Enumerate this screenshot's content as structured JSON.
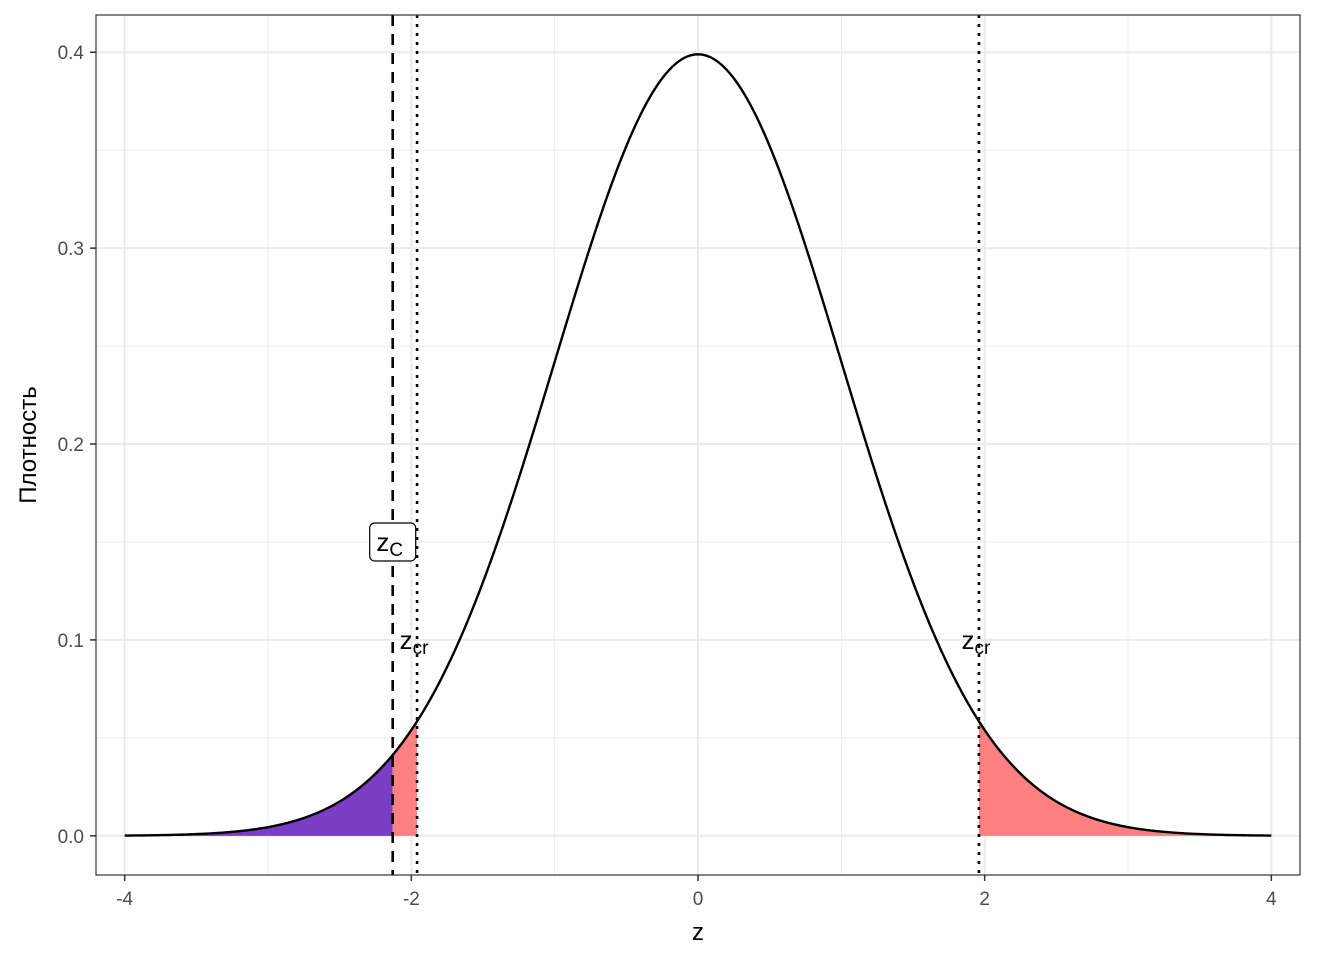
{
  "chart_data": {
    "type": "area",
    "distribution": "standard-normal",
    "xlabel": "z",
    "ylabel": "Плотность",
    "xlim": [
      -4.2,
      4.2
    ],
    "ylim": [
      -0.02,
      0.419
    ],
    "x_ticks": [
      -4,
      -2,
      0,
      2,
      4
    ],
    "x_tick_labels": [
      "-4",
      "-2",
      "0",
      "2",
      "4"
    ],
    "y_ticks": [
      0.0,
      0.1,
      0.2,
      0.3,
      0.4
    ],
    "y_tick_labels": [
      "0.0",
      "0.1",
      "0.2",
      "0.3",
      "0.4"
    ],
    "grid": true,
    "curve": {
      "x_from": -4,
      "x_to": 4,
      "color": "#000000"
    },
    "shaded_regions": [
      {
        "x_from": -4,
        "x_to": -2.13,
        "color": "#7B3DC3"
      },
      {
        "x_from": -2.13,
        "x_to": -1.96,
        "color": "#FF8080"
      },
      {
        "x_from": 1.96,
        "x_to": 4,
        "color": "#FF8080"
      }
    ],
    "vlines": [
      {
        "x": -2.13,
        "style": "dashed"
      },
      {
        "x": -1.96,
        "style": "dotted"
      },
      {
        "x": 1.96,
        "style": "dotted"
      }
    ],
    "annotations": [
      {
        "main": "z",
        "sub": "C",
        "x": -2.13,
        "y": 0.15,
        "boxed": true
      },
      {
        "main": "z",
        "sub": "cr",
        "x": -1.96,
        "y": 0.1,
        "boxed": false
      },
      {
        "main": "z",
        "sub": "cr",
        "x": 1.96,
        "y": 0.1,
        "boxed": false
      }
    ]
  }
}
